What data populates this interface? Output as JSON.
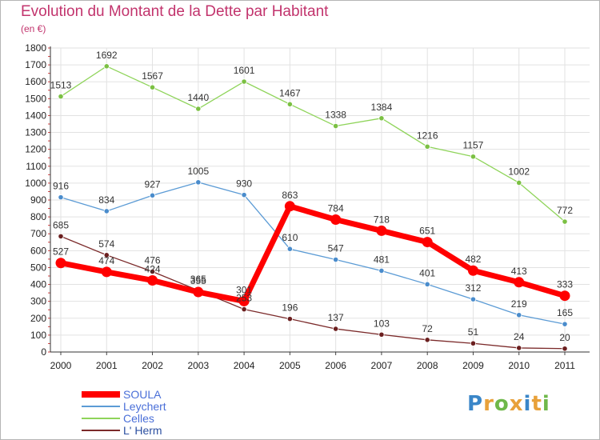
{
  "header": {
    "title": "Evolution du Montant de la Dette par Habitant",
    "subtitle": "(en €)"
  },
  "logo": {
    "text": "Proxiti",
    "colors": [
      "#3a86c8",
      "#e8a13a",
      "#6fb84a",
      "#e8a13a",
      "#3a86c8",
      "#e8a13a",
      "#6fb84a"
    ]
  },
  "chart_data": {
    "type": "line",
    "title": "Evolution du Montant de la Dette par Habitant",
    "subtitle": "(en €)",
    "xlabel": "",
    "ylabel": "",
    "x": [
      "2000",
      "2001",
      "2002",
      "2003",
      "2004",
      "2005",
      "2006",
      "2007",
      "2008",
      "2009",
      "2010",
      "2011"
    ],
    "ylim": [
      0,
      1800
    ],
    "yticks": [
      0,
      100,
      200,
      300,
      400,
      500,
      600,
      700,
      800,
      900,
      1000,
      1100,
      1200,
      1300,
      1400,
      1500,
      1600,
      1700,
      1800
    ],
    "grid": true,
    "legend_position": "bottom-left",
    "series": [
      {
        "name": "Celles",
        "color": "#8fd45a",
        "marker_color": "#7bc043",
        "emphasis": false,
        "values": [
          1513,
          1692,
          1567,
          1440,
          1601,
          1467,
          1338,
          1384,
          1216,
          1157,
          1002,
          772
        ]
      },
      {
        "name": "Leychert",
        "color": "#5b9bd5",
        "marker_color": "#4a8ccc",
        "emphasis": false,
        "values": [
          916,
          834,
          927,
          1005,
          930,
          610,
          547,
          481,
          401,
          312,
          219,
          165
        ]
      },
      {
        "name": "L' Herm",
        "color": "#7b2a2a",
        "marker_color": "#6b1f1f",
        "emphasis": false,
        "values": [
          685,
          574,
          476,
          365,
          253,
          196,
          137,
          103,
          72,
          51,
          24,
          20
        ]
      },
      {
        "name": "SOULA",
        "color": "#ff0000",
        "marker_color": "#ff0000",
        "emphasis": true,
        "values": [
          527,
          474,
          424,
          355,
          301,
          863,
          784,
          718,
          651,
          482,
          413,
          333
        ]
      }
    ],
    "legend_order": [
      "SOULA",
      "Leychert",
      "Celles",
      "L' Herm"
    ]
  }
}
